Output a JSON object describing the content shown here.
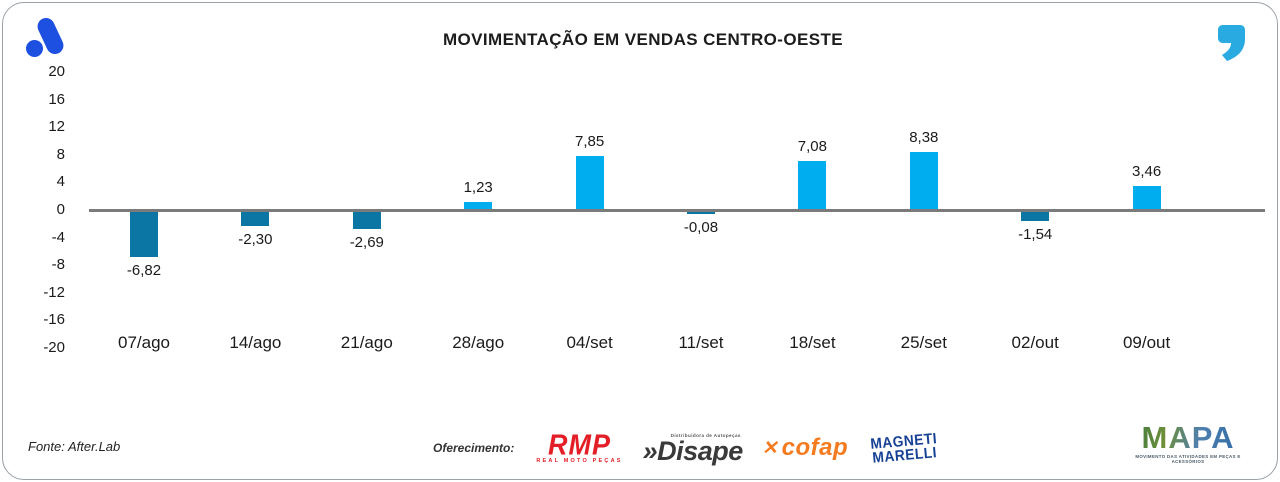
{
  "chart_data": {
    "type": "bar",
    "title": "MOVIMENTAÇÃO EM VENDAS CENTRO-OESTE",
    "categories": [
      "07/ago",
      "14/ago",
      "21/ago",
      "28/ago",
      "04/set",
      "11/set",
      "18/set",
      "25/set",
      "02/out",
      "09/out"
    ],
    "values": [
      -6.82,
      -2.3,
      -2.69,
      1.23,
      7.85,
      -0.08,
      7.08,
      8.38,
      -1.54,
      3.46
    ],
    "value_labels": [
      "-6,82",
      "-2,30",
      "-2,69",
      "1,23",
      "7,85",
      "-0,08",
      "7,08",
      "8,38",
      "-1,54",
      "3,46"
    ],
    "ylim": [
      -20,
      20
    ],
    "yticks": [
      20,
      16,
      12,
      8,
      4,
      0,
      -4,
      -8,
      -12,
      -16,
      -20
    ],
    "grid": false,
    "legend": false,
    "xlabel": "",
    "ylabel": "",
    "bar_color_positive": "#00AEEF",
    "bar_color_negative": "#0B76A4",
    "axis_color": "#7B7B7B"
  },
  "icons": {
    "afterlab_logo_color": "#1D4FE0",
    "quote_color": "#29ABE2"
  },
  "footer": {
    "source": "Fonte: After.Lab",
    "sponsor_label": "Oferecimento:",
    "sponsors": [
      {
        "name": "RMP",
        "caption": "REAL MOTO PEÇAS",
        "color": "#E31E26"
      },
      {
        "name": "Disape",
        "prefix": "»",
        "caption": "Distribuidora de Autopeças",
        "color": "#3A3A3A"
      },
      {
        "name": "cofap",
        "icon": "✕",
        "color": "#F47B20"
      },
      {
        "name": "MAGNETI MARELLI",
        "line1": "MAGNETI",
        "line2": "MARELLI",
        "color": "#164194"
      }
    ],
    "mapa": {
      "name": "MAPA",
      "caption": "MOVIMENTO DAS ATIVIDADES EM PEÇAS E ACESSÓRIOS"
    }
  }
}
